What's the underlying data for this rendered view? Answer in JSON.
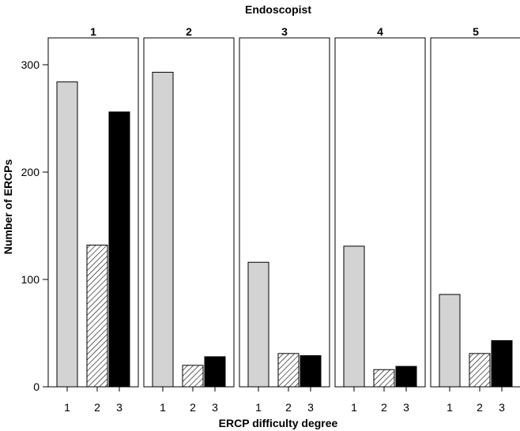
{
  "chart_data": {
    "type": "bar",
    "title": "Endoscopist",
    "xlabel": "ERCP difficulty degree",
    "ylabel": "Number of ERCPs",
    "ylim": [
      0,
      325
    ],
    "yticks": [
      "0",
      "100",
      "200",
      "300"
    ],
    "categories": [
      "1",
      "2",
      "3"
    ],
    "category_fills": [
      "#d3d3d3",
      "hatch",
      "#000000"
    ],
    "grid": false,
    "legend": "none",
    "panels": [
      {
        "name": "1",
        "values": [
          284,
          132,
          256
        ]
      },
      {
        "name": "2",
        "values": [
          293,
          20,
          28
        ]
      },
      {
        "name": "3",
        "values": [
          116,
          31,
          29
        ]
      },
      {
        "name": "4",
        "values": [
          131,
          16,
          19
        ]
      },
      {
        "name": "5",
        "values": [
          86,
          31,
          43
        ]
      }
    ]
  }
}
